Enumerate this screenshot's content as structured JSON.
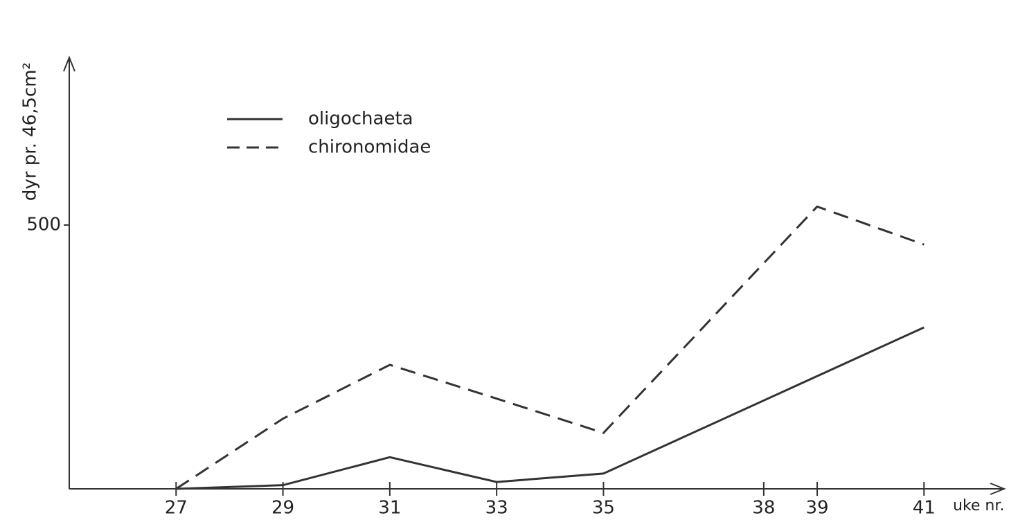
{
  "chart_data": {
    "type": "line",
    "y_label": "dyr pr. 46,5cm²",
    "x_label": "uke nr.",
    "xlim": [
      25,
      42.5
    ],
    "xticks": [
      27,
      29,
      31,
      33,
      35,
      38,
      39,
      41
    ],
    "ylim": [
      0,
      815
    ],
    "yticks": [
      500
    ],
    "series": [
      {
        "name": "oligochaeta",
        "color": "#333333",
        "dash": "solid",
        "x": [
          27,
          29,
          31,
          33,
          35,
          41
        ],
        "values": [
          0,
          7,
          60,
          13,
          29,
          306
        ]
      },
      {
        "name": "chironomidae",
        "color": "#333333",
        "dash": "dashed",
        "x": [
          27,
          29,
          31,
          33,
          35,
          39,
          41
        ],
        "values": [
          0,
          133,
          235,
          171,
          106,
          535,
          463
        ]
      }
    ]
  }
}
